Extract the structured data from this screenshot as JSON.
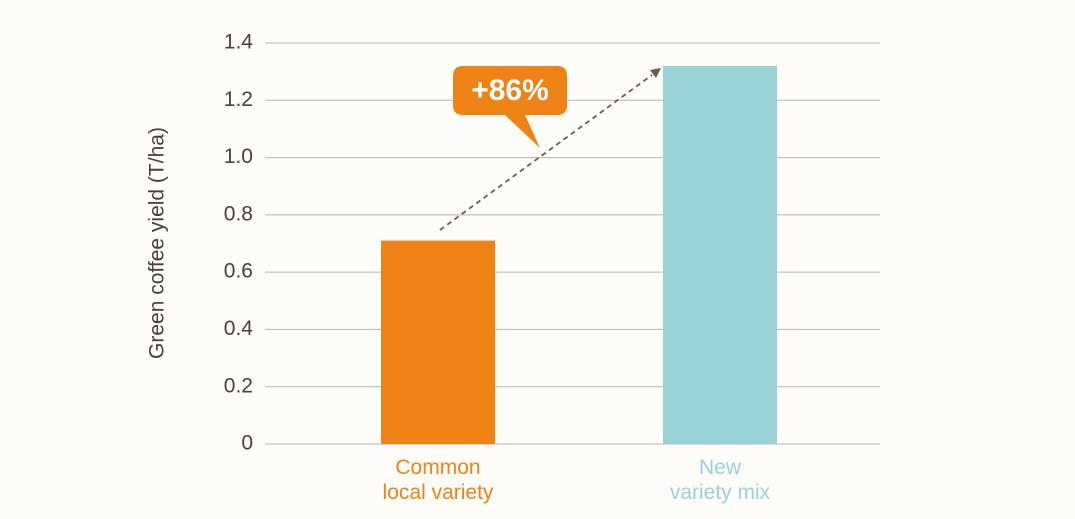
{
  "chart_data": {
    "type": "bar",
    "y_label": "Green coffee yield (T/ha)",
    "categories": [
      "Common\nlocal variety",
      "New\nvariety mix"
    ],
    "values": [
      0.71,
      1.32
    ],
    "colors": [
      "#ee8214",
      "#98d2d6"
    ],
    "annotation": "+86%",
    "ylim": [
      0,
      1.4
    ],
    "yticks": [
      0,
      0.2,
      0.4,
      0.6,
      0.8,
      {
        "value": 1,
        "label": "1.0"
      },
      1.2,
      1.4
    ],
    "grid": true
  }
}
